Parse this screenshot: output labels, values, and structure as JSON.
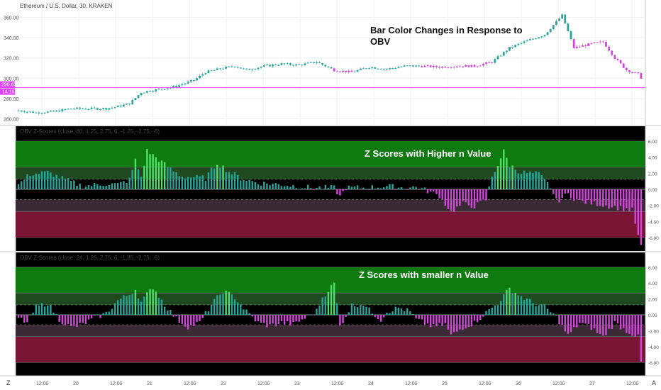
{
  "header": {
    "price_title": "Ethereum / U.S. Dollar, 30, KRAKEN",
    "osc1_title": "OBV Z-Scores (close, 80, 1.25, 2.75, 6, -1.25, -2.75, -6)",
    "osc2_title": "OBV Z-Scores (close, 24, 1.25, 2.75, 6, -1.25, -2.75, -6)"
  },
  "annotations": {
    "price": "Bar Color Changes in Response to OBV",
    "osc1": "Z Scores with Higher n Value",
    "osc2": "Z Scores with smaller n Value"
  },
  "price_labels": {
    "current": "290.65",
    "countdown": "14:18"
  },
  "footer": {
    "left_button": "Z",
    "right_button": "A"
  },
  "colors": {
    "up": "#26a69a",
    "down": "#d048d8",
    "strong": "#4ee06a",
    "zone_high": "#0f7a0f",
    "zone_mid_high": "#1f4a1f",
    "zone_mid_low": "#3a2a33",
    "zone_low": "#7b1535",
    "price_line": "#e040fb"
  },
  "chart_data": [
    {
      "type": "candlestick",
      "title": "Ethereum / U.S. Dollar, 30, KRAKEN",
      "ylim": [
        254,
        366
      ],
      "y_ticks": [
        260,
        280,
        300,
        320,
        340,
        360
      ],
      "x_ticks": [
        "12:00",
        "20",
        "12:00",
        "21",
        "12:00",
        "22",
        "12:00",
        "23",
        "12:00",
        "24",
        "12:00",
        "25",
        "12:00",
        "26",
        "12:00",
        "27",
        "12:00"
      ],
      "current_price": 290.65,
      "close_profile": [
        [
          0,
          268
        ],
        [
          6,
          266
        ],
        [
          12,
          267
        ],
        [
          18,
          270
        ],
        [
          24,
          270
        ],
        [
          30,
          270
        ],
        [
          34,
          272
        ],
        [
          38,
          275
        ],
        [
          42,
          286
        ],
        [
          48,
          289
        ],
        [
          54,
          292
        ],
        [
          60,
          298
        ],
        [
          64,
          306
        ],
        [
          70,
          310
        ],
        [
          74,
          312
        ],
        [
          78,
          308
        ],
        [
          84,
          312
        ],
        [
          90,
          314
        ],
        [
          96,
          313
        ],
        [
          102,
          316
        ],
        [
          108,
          308
        ],
        [
          114,
          306
        ],
        [
          120,
          311
        ],
        [
          126,
          309
        ],
        [
          132,
          312
        ],
        [
          138,
          312
        ],
        [
          144,
          311
        ],
        [
          150,
          312
        ],
        [
          156,
          312
        ],
        [
          162,
          316
        ],
        [
          168,
          330
        ],
        [
          174,
          337
        ],
        [
          180,
          343
        ],
        [
          186,
          362
        ],
        [
          190,
          330
        ],
        [
          196,
          334
        ],
        [
          200,
          336
        ],
        [
          204,
          320
        ],
        [
          208,
          308
        ],
        [
          212,
          304
        ],
        [
          216,
          290
        ]
      ],
      "purple_ranges": [
        [
          108,
          114
        ],
        [
          138,
          162
        ],
        [
          190,
          216
        ]
      ]
    },
    {
      "type": "bar",
      "title": "OBV Z-Scores (close, 80, 1.25, 2.75, 6, -1.25, -2.75, -6)",
      "ylim": [
        -7.5,
        7.5
      ],
      "y_ticks": [
        6,
        4,
        2,
        0,
        -2,
        -4,
        -6
      ],
      "levels": [
        6,
        2.75,
        1.25,
        -1.25,
        -2.75,
        -6
      ],
      "profile": [
        [
          0,
          0.6
        ],
        [
          4,
          1.9
        ],
        [
          10,
          2.1
        ],
        [
          16,
          1.2
        ],
        [
          22,
          0.4
        ],
        [
          30,
          0.7
        ],
        [
          34,
          0.6
        ],
        [
          38,
          1.2
        ],
        [
          40,
          3.6
        ],
        [
          42,
          1.5
        ],
        [
          44,
          4.8
        ],
        [
          48,
          3.7
        ],
        [
          52,
          2.5
        ],
        [
          56,
          1.6
        ],
        [
          60,
          1.5
        ],
        [
          64,
          1.4
        ],
        [
          68,
          3.3
        ],
        [
          72,
          2.2
        ],
        [
          76,
          1.4
        ],
        [
          82,
          0.8
        ],
        [
          90,
          0.6
        ],
        [
          100,
          0.2
        ],
        [
          108,
          0.2
        ],
        [
          110,
          -0.9
        ],
        [
          112,
          0.2
        ],
        [
          120,
          0.2
        ],
        [
          126,
          0.4
        ],
        [
          132,
          0.2
        ],
        [
          136,
          0.3
        ],
        [
          140,
          -0.2
        ],
        [
          144,
          -0.8
        ],
        [
          148,
          -2.8
        ],
        [
          152,
          -1.8
        ],
        [
          156,
          -2.1
        ],
        [
          160,
          -1.3
        ],
        [
          162,
          1.6
        ],
        [
          164,
          3.1
        ],
        [
          166,
          4.7
        ],
        [
          168,
          3.0
        ],
        [
          172,
          2.1
        ],
        [
          178,
          1.9
        ],
        [
          182,
          0.3
        ],
        [
          184,
          -1.5
        ],
        [
          188,
          -0.6
        ],
        [
          192,
          -1.5
        ],
        [
          198,
          -1.8
        ],
        [
          204,
          -2.2
        ],
        [
          210,
          -2.6
        ],
        [
          212,
          -5.8
        ],
        [
          213,
          -7.2
        ]
      ]
    },
    {
      "type": "bar",
      "title": "OBV Z-Scores (close, 24, 1.25, 2.75, 6, -1.25, -2.75, -6)",
      "ylim": [
        -7.5,
        7.5
      ],
      "y_ticks": [
        6,
        4,
        2,
        0,
        -2,
        -4,
        -6
      ],
      "levels": [
        6,
        2.75,
        1.25,
        -1.25,
        -2.75,
        -6
      ],
      "profile": [
        [
          0,
          -0.4
        ],
        [
          3,
          -1.0
        ],
        [
          6,
          1.0
        ],
        [
          10,
          1.5
        ],
        [
          14,
          -0.6
        ],
        [
          18,
          -1.6
        ],
        [
          22,
          -1.2
        ],
        [
          26,
          -0.4
        ],
        [
          30,
          0.2
        ],
        [
          34,
          1.8
        ],
        [
          38,
          2.6
        ],
        [
          40,
          3.2
        ],
        [
          42,
          1.6
        ],
        [
          46,
          3.5
        ],
        [
          50,
          1.3
        ],
        [
          54,
          -0.5
        ],
        [
          58,
          -1.5
        ],
        [
          62,
          -1.0
        ],
        [
          66,
          1.3
        ],
        [
          70,
          3.0
        ],
        [
          74,
          2.2
        ],
        [
          78,
          0.4
        ],
        [
          82,
          -1.0
        ],
        [
          86,
          -1.4
        ],
        [
          90,
          -1.0
        ],
        [
          94,
          -1.2
        ],
        [
          98,
          -0.4
        ],
        [
          102,
          0.5
        ],
        [
          104,
          2.2
        ],
        [
          108,
          4.0
        ],
        [
          110,
          -1.4
        ],
        [
          114,
          1.2
        ],
        [
          118,
          1.4
        ],
        [
          120,
          0.6
        ],
        [
          124,
          -0.6
        ],
        [
          126,
          0.4
        ],
        [
          130,
          0.9
        ],
        [
          134,
          0.4
        ],
        [
          136,
          -0.6
        ],
        [
          142,
          -1.5
        ],
        [
          146,
          -1.2
        ],
        [
          148,
          -2.6
        ],
        [
          152,
          -1.6
        ],
        [
          156,
          -1.0
        ],
        [
          160,
          0.3
        ],
        [
          164,
          1.5
        ],
        [
          168,
          3.3
        ],
        [
          172,
          2.3
        ],
        [
          176,
          1.5
        ],
        [
          180,
          1.0
        ],
        [
          184,
          -0.3
        ],
        [
          188,
          -2.6
        ],
        [
          192,
          -1.0
        ],
        [
          196,
          -1.6
        ],
        [
          200,
          -2.8
        ],
        [
          204,
          -1.0
        ],
        [
          208,
          -2.0
        ],
        [
          212,
          -2.8
        ],
        [
          213,
          -6.0
        ]
      ]
    }
  ]
}
